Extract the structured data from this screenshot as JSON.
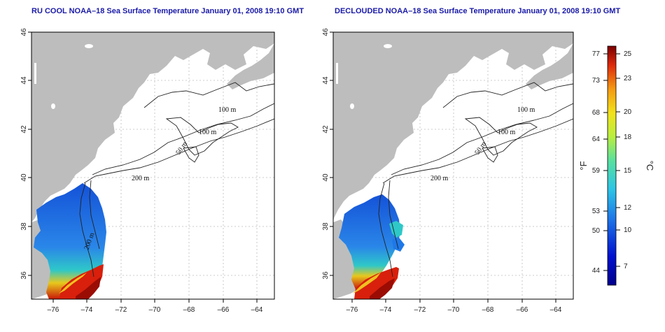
{
  "panels": [
    {
      "title": "RU COOL NOAA–18 Sea Surface Temperature January 01, 2008 19:10 GMT",
      "contour_labels": [
        "100 m",
        "100 m",
        "50 m",
        "200 m",
        "200 m"
      ]
    },
    {
      "title": "DECLOUDED NOAA–18 Sea Surface Temperature January 01, 2008 19:10 GMT",
      "contour_labels": [
        "100 m",
        "100 m",
        "50 m",
        "200 m"
      ]
    }
  ],
  "axes": {
    "lat_ticks": [
      "46",
      "44",
      "42",
      "40",
      "38",
      "36"
    ],
    "lon_ticks": [
      "–76",
      "–74",
      "–72",
      "–70",
      "–68",
      "–66",
      "–64"
    ]
  },
  "colorbar": {
    "left_unit": "°F",
    "right_unit": "°C",
    "fahrenheit_ticks": [
      "77",
      "73",
      "68",
      "64",
      "59",
      "53",
      "50",
      "44"
    ],
    "celsius_ticks": [
      "25",
      "23",
      "20",
      "18",
      "15",
      "12",
      "10",
      "7"
    ],
    "range_celsius": [
      5,
      26
    ]
  },
  "colors": {
    "title": "#1a1aa8",
    "land": "#bdbdbd",
    "water": "#ffffff",
    "grid": "#bdbdbd"
  }
}
